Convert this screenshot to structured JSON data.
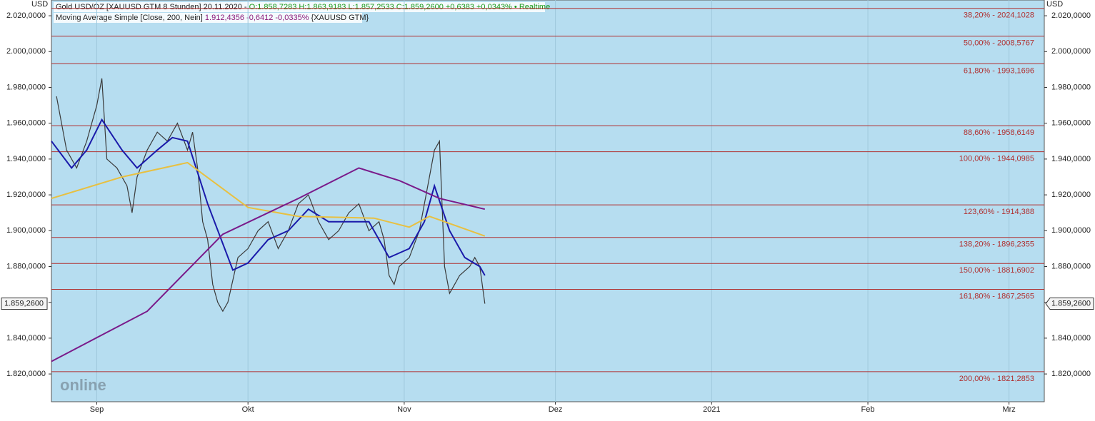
{
  "chart_data": {
    "type": "line",
    "header": {
      "instrument": "Gold USD/OZ [XAUUSD GTM 8 Stunden] 20.11.2020 -",
      "ohlc": "O:1.858,7283 H:1.863,9183 L:1.857,2533 C:1.859,2600 +0,6383 +0,0343%",
      "status": "• Realtime",
      "indicator": "Moving Average Simple [Close, 200, Nein]",
      "indicator_values": "1.912,4356 -0,6412 -0,0335%",
      "indicator_source": "{XAUUSD GTM}"
    },
    "currency_left": "USD",
    "currency_right": "USD",
    "watermark": "online",
    "last_price": {
      "value": 1859.26,
      "label": "1.859,2600"
    },
    "xlim": [
      -9,
      188
    ],
    "xticks": [
      {
        "value": 0,
        "label": "Sep"
      },
      {
        "value": 30,
        "label": "Okt"
      },
      {
        "value": 61,
        "label": "Nov"
      },
      {
        "value": 91,
        "label": "Dez"
      },
      {
        "value": 122,
        "label": "2021"
      },
      {
        "value": 153,
        "label": "Feb"
      },
      {
        "value": 181,
        "label": "Mrz"
      }
    ],
    "ylim": [
      1804.5,
      2028.8
    ],
    "yticks": [
      {
        "value": 1820,
        "label": "1.820,0000"
      },
      {
        "value": 1840,
        "label": "1.840,0000"
      },
      {
        "value": 1860,
        "label": "1.860,0000"
      },
      {
        "value": 1880,
        "label": "1.880,0000"
      },
      {
        "value": 1900,
        "label": "1.900,0000"
      },
      {
        "value": 1920,
        "label": "1.920,0000"
      },
      {
        "value": 1940,
        "label": "1.940,0000"
      },
      {
        "value": 1960,
        "label": "1.960,0000"
      },
      {
        "value": 1980,
        "label": "1.980,0000"
      },
      {
        "value": 2000,
        "label": "2.000,0000"
      },
      {
        "value": 2020,
        "label": "2.020,0000"
      }
    ],
    "fib_levels": [
      {
        "value": 2024.1028,
        "label": "38,20% - 2024,1028"
      },
      {
        "value": 2008.5767,
        "label": "50,00% - 2008,5767"
      },
      {
        "value": 1993.1696,
        "label": "61,80% - 1993,1696"
      },
      {
        "value": 1958.6149,
        "label": "88,60% - 1958,6149"
      },
      {
        "value": 1944.0985,
        "label": "100,00% - 1944,0985"
      },
      {
        "value": 1914.388,
        "label": "123,60% - 1914,388"
      },
      {
        "value": 1896.2355,
        "label": "138,20% - 1896,2355"
      },
      {
        "value": 1881.6902,
        "label": "150,00% - 1881,6902"
      },
      {
        "value": 1867.2565,
        "label": "161,80% - 1867,2565"
      },
      {
        "value": 1821.2853,
        "label": "200,00% - 1821,2853"
      }
    ],
    "fib_color": "#b03030",
    "series": [
      {
        "color": "#3a3a3a",
        "x": [
          -8,
          -6,
          -4,
          -2,
          0,
          1,
          2,
          4,
          6,
          7,
          8,
          10,
          12,
          14,
          16,
          18,
          19,
          20,
          21,
          22,
          23,
          24,
          25,
          26,
          28,
          30,
          32,
          34,
          36,
          38,
          40,
          42,
          44,
          46,
          48,
          50,
          52,
          54,
          56,
          57,
          58,
          59,
          60,
          62,
          64,
          66,
          67,
          68,
          69,
          70,
          71,
          72,
          74,
          75,
          76,
          77
        ],
        "values": [
          1975,
          1945,
          1935,
          1950,
          1970,
          1985,
          1940,
          1935,
          1925,
          1910,
          1930,
          1945,
          1955,
          1950,
          1960,
          1945,
          1955,
          1935,
          1905,
          1895,
          1870,
          1860,
          1855,
          1860,
          1885,
          1890,
          1900,
          1905,
          1890,
          1900,
          1915,
          1920,
          1905,
          1895,
          1900,
          1910,
          1915,
          1900,
          1905,
          1895,
          1875,
          1870,
          1880,
          1885,
          1900,
          1930,
          1945,
          1950,
          1880,
          1865,
          1870,
          1875,
          1880,
          1885,
          1880,
          1859.26
        ]
      },
      {
        "color": "#1a1aaa",
        "x": [
          -9,
          -5,
          -2,
          1,
          5,
          8,
          12,
          15,
          18,
          22,
          27,
          30,
          34,
          38,
          42,
          46,
          50,
          54,
          58,
          62,
          65,
          67,
          70,
          73,
          76,
          77
        ],
        "values": [
          1950,
          1935,
          1945,
          1962,
          1945,
          1935,
          1945,
          1952,
          1950,
          1915,
          1878,
          1882,
          1895,
          1900,
          1912,
          1905,
          1905,
          1905,
          1885,
          1890,
          1905,
          1925,
          1900,
          1885,
          1880,
          1875
        ]
      },
      {
        "color": "#e8c040",
        "x": [
          -9,
          5,
          18,
          30,
          40,
          55,
          62,
          66,
          77
        ],
        "values": [
          1918,
          1930,
          1938,
          1913,
          1908,
          1907,
          1902,
          1908,
          1897
        ]
      },
      {
        "color": "#7a1a8a",
        "x": [
          -9,
          10,
          25,
          40,
          52,
          60,
          68,
          77
        ],
        "values": [
          1827,
          1855,
          1898,
          1918,
          1935,
          1928,
          1918,
          1912
        ]
      }
    ]
  }
}
